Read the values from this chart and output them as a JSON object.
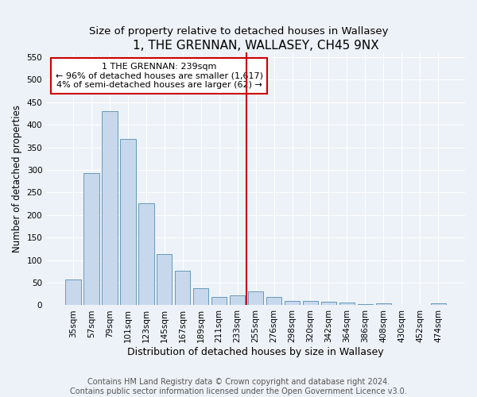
{
  "title": "1, THE GRENNAN, WALLASEY, CH45 9NX",
  "subtitle": "Size of property relative to detached houses in Wallasey",
  "xlabel": "Distribution of detached houses by size in Wallasey",
  "ylabel": "Number of detached properties",
  "bar_labels": [
    "35sqm",
    "57sqm",
    "79sqm",
    "101sqm",
    "123sqm",
    "145sqm",
    "167sqm",
    "189sqm",
    "211sqm",
    "233sqm",
    "255sqm",
    "276sqm",
    "298sqm",
    "320sqm",
    "342sqm",
    "364sqm",
    "386sqm",
    "408sqm",
    "430sqm",
    "452sqm",
    "474sqm"
  ],
  "bar_values": [
    57,
    293,
    430,
    368,
    226,
    113,
    76,
    38,
    19,
    22,
    30,
    18,
    9,
    10,
    8,
    6,
    3,
    5,
    0,
    0,
    4
  ],
  "bar_color": "#c8d8ec",
  "bar_edgecolor": "#6699bb",
  "vline_color": "#cc0000",
  "annotation_title": "1 THE GRENNAN: 239sqm",
  "annotation_line1": "← 96% of detached houses are smaller (1,617)",
  "annotation_line2": "4% of semi-detached houses are larger (62) →",
  "annotation_box_edgecolor": "#cc0000",
  "ylim": [
    0,
    560
  ],
  "yticks": [
    0,
    50,
    100,
    150,
    200,
    250,
    300,
    350,
    400,
    450,
    500,
    550
  ],
  "footer1": "Contains HM Land Registry data © Crown copyright and database right 2024.",
  "footer2": "Contains public sector information licensed under the Open Government Licence v3.0.",
  "bg_color": "#edf2f8",
  "title_fontsize": 11,
  "subtitle_fontsize": 9.5,
  "xlabel_fontsize": 9,
  "ylabel_fontsize": 8.5,
  "tick_fontsize": 7.5,
  "footer_fontsize": 7
}
